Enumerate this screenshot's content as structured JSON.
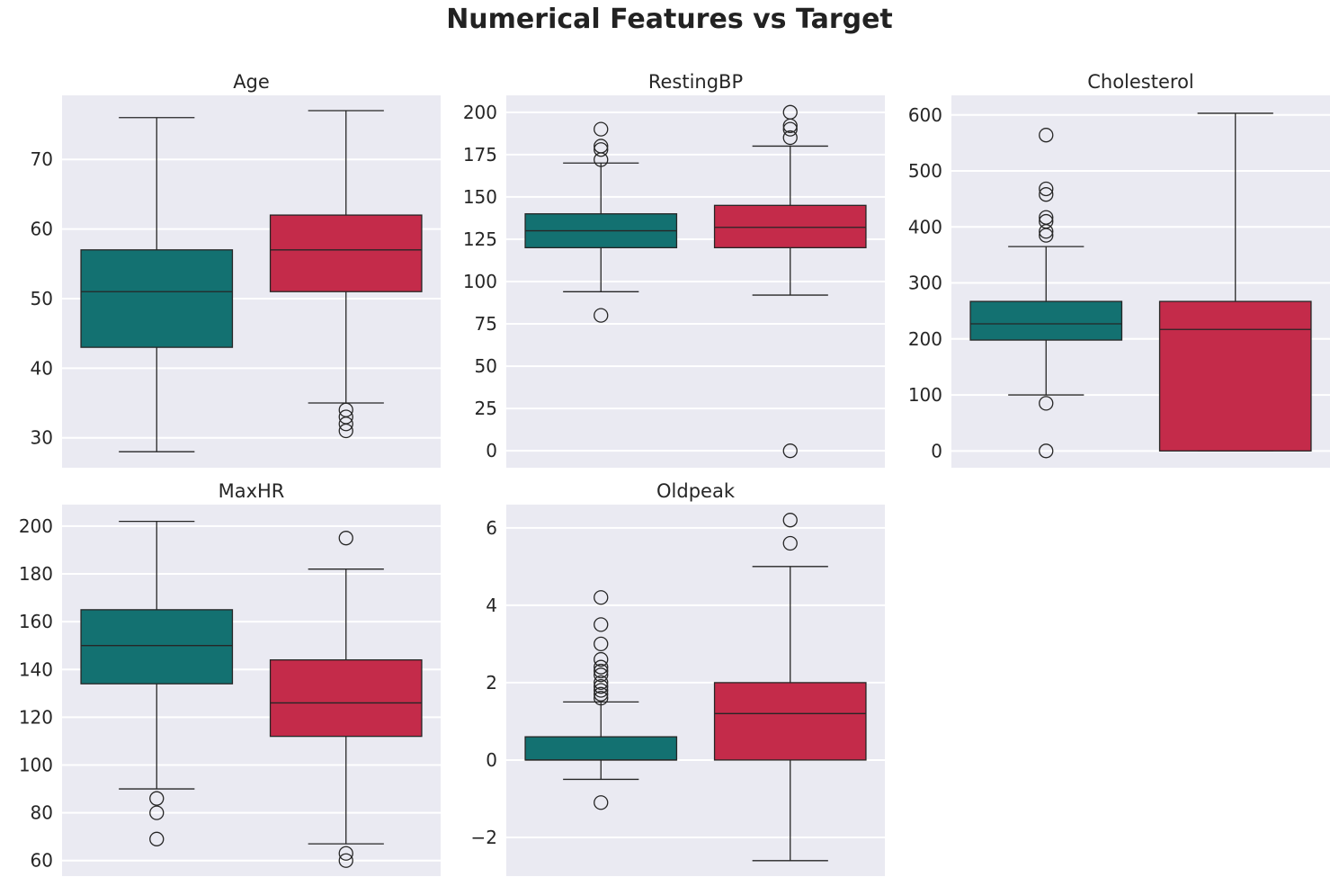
{
  "figure": {
    "title": "Numerical Features vs Target"
  },
  "colors": {
    "group0": "#137171",
    "group1": "#C42B4A",
    "panel_bg": "#EAEAF2",
    "grid": "#FFFFFF",
    "line": "#262626"
  },
  "chart_data": [
    {
      "type": "box",
      "title": "Age",
      "ylim": [
        25.7,
        79.2
      ],
      "yticks": [
        30,
        40,
        50,
        60,
        70
      ],
      "grid": true,
      "boxes": [
        {
          "q1": 43,
          "median": 51,
          "q3": 57,
          "whisker_low": 28,
          "whisker_high": 76,
          "outliers": []
        },
        {
          "q1": 51,
          "median": 57,
          "q3": 62,
          "whisker_low": 35,
          "whisker_high": 77,
          "outliers": [
            34,
            33,
            32,
            31
          ]
        }
      ]
    },
    {
      "type": "box",
      "title": "RestingBP",
      "ylim": [
        -10,
        210
      ],
      "yticks": [
        0,
        25,
        50,
        75,
        100,
        125,
        150,
        175,
        200
      ],
      "grid": true,
      "boxes": [
        {
          "q1": 120,
          "median": 130,
          "q3": 140,
          "whisker_low": 94,
          "whisker_high": 170,
          "outliers": [
            80,
            172,
            178,
            180,
            190
          ]
        },
        {
          "q1": 120,
          "median": 132,
          "q3": 145,
          "whisker_low": 92,
          "whisker_high": 180,
          "outliers": [
            0,
            185,
            190,
            192,
            200
          ]
        }
      ]
    },
    {
      "type": "box",
      "title": "Cholesterol",
      "ylim": [
        -30,
        635
      ],
      "yticks": [
        0,
        100,
        200,
        300,
        400,
        500,
        600
      ],
      "grid": true,
      "boxes": [
        {
          "q1": 198,
          "median": 227,
          "q3": 267,
          "whisker_low": 100,
          "whisker_high": 365,
          "outliers": [
            0,
            85,
            385,
            392,
            410,
            417,
            458,
            468,
            564
          ]
        },
        {
          "q1": 0,
          "median": 217,
          "q3": 267,
          "whisker_low": 0,
          "whisker_high": 603,
          "outliers": []
        }
      ]
    },
    {
      "type": "box",
      "title": "MaxHR",
      "ylim": [
        53.5,
        209
      ],
      "yticks": [
        60,
        80,
        100,
        120,
        140,
        160,
        180,
        200
      ],
      "grid": true,
      "boxes": [
        {
          "q1": 134,
          "median": 150,
          "q3": 165,
          "whisker_low": 90,
          "whisker_high": 202,
          "outliers": [
            86,
            80,
            69
          ]
        },
        {
          "q1": 112,
          "median": 126,
          "q3": 144,
          "whisker_low": 67,
          "whisker_high": 182,
          "outliers": [
            195,
            63,
            60
          ]
        }
      ]
    },
    {
      "type": "box",
      "title": "Oldpeak",
      "ylim": [
        -3.0,
        6.6
      ],
      "yticks": [
        -2,
        0,
        2,
        4,
        6
      ],
      "ytick_labels": [
        "−2",
        "0",
        "2",
        "4",
        "6"
      ],
      "grid": true,
      "boxes": [
        {
          "q1": 0,
          "median": 0,
          "q3": 0.6,
          "whisker_low": -0.5,
          "whisker_high": 1.5,
          "outliers": [
            -1.1,
            1.6,
            1.7,
            1.8,
            1.9,
            2.0,
            2.2,
            2.3,
            2.4,
            2.6,
            3.0,
            3.5,
            4.2
          ]
        },
        {
          "q1": 0,
          "median": 1.2,
          "q3": 2.0,
          "whisker_low": -2.6,
          "whisker_high": 5.0,
          "outliers": [
            5.6,
            6.2
          ]
        }
      ]
    }
  ]
}
